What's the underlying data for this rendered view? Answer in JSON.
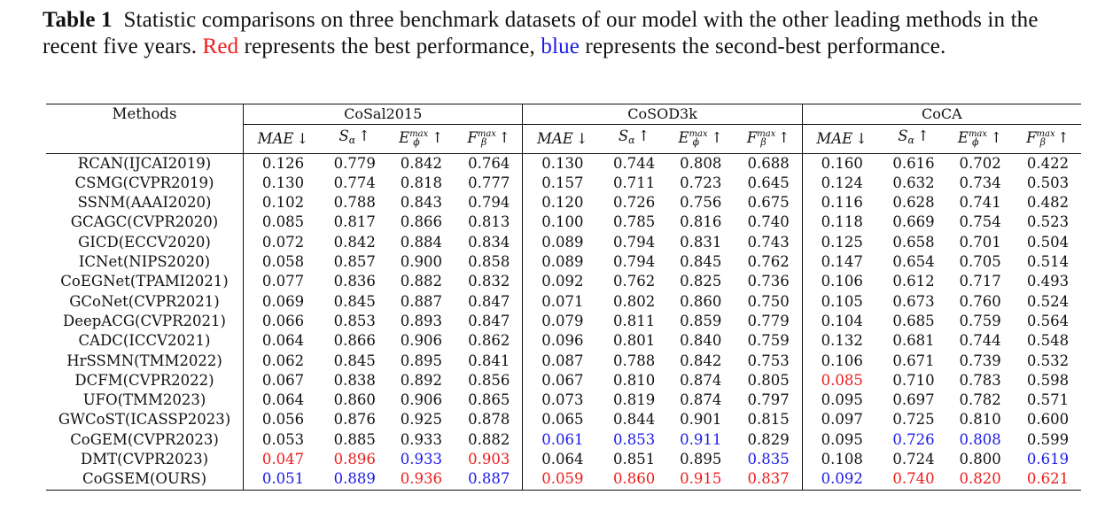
{
  "caption": {
    "label": "Table 1",
    "text_before_red": "Statistic comparisons on three benchmark datasets of our model with the other leading methods in the recent five years. ",
    "red_word": "Red",
    "text_between": " represents the best performance, ",
    "blue_word": "blue",
    "text_after_blue": " represents the second-best performance."
  },
  "colors": {
    "best": "#ee1b1b",
    "second": "#1a1ae6",
    "text": "#111111"
  },
  "table": {
    "methods_header": "Methods",
    "datasets": [
      "CoSal2015",
      "CoSOD3k",
      "CoCA"
    ],
    "metrics": [
      {
        "base": "MAE",
        "sub": "",
        "sup": "",
        "arrow": "↓"
      },
      {
        "base": "S",
        "sub": "α",
        "sup": "",
        "arrow": "↑"
      },
      {
        "base": "E",
        "sub": "ϕ",
        "sup": "max",
        "arrow": "↑"
      },
      {
        "base": "F",
        "sub": "β",
        "sup": "max",
        "arrow": "↑"
      }
    ],
    "rows": [
      {
        "method": "RCAN(IJCAI2019)",
        "values": [
          "0.126",
          "0.779",
          "0.842",
          "0.764",
          "0.130",
          "0.744",
          "0.808",
          "0.688",
          "0.160",
          "0.616",
          "0.702",
          "0.422"
        ],
        "marks": [
          "",
          "",
          "",
          "",
          "",
          "",
          "",
          "",
          "",
          "",
          "",
          ""
        ]
      },
      {
        "method": "CSMG(CVPR2019)",
        "values": [
          "0.130",
          "0.774",
          "0.818",
          "0.777",
          "0.157",
          "0.711",
          "0.723",
          "0.645",
          "0.124",
          "0.632",
          "0.734",
          "0.503"
        ],
        "marks": [
          "",
          "",
          "",
          "",
          "",
          "",
          "",
          "",
          "",
          "",
          "",
          ""
        ]
      },
      {
        "method": "SSNM(AAAI2020)",
        "values": [
          "0.102",
          "0.788",
          "0.843",
          "0.794",
          "0.120",
          "0.726",
          "0.756",
          "0.675",
          "0.116",
          "0.628",
          "0.741",
          "0.482"
        ],
        "marks": [
          "",
          "",
          "",
          "",
          "",
          "",
          "",
          "",
          "",
          "",
          "",
          ""
        ]
      },
      {
        "method": "GCAGC(CVPR2020)",
        "values": [
          "0.085",
          "0.817",
          "0.866",
          "0.813",
          "0.100",
          "0.785",
          "0.816",
          "0.740",
          "0.118",
          "0.669",
          "0.754",
          "0.523"
        ],
        "marks": [
          "",
          "",
          "",
          "",
          "",
          "",
          "",
          "",
          "",
          "",
          "",
          ""
        ]
      },
      {
        "method": "GICD(ECCV2020)",
        "values": [
          "0.072",
          "0.842",
          "0.884",
          "0.834",
          "0.089",
          "0.794",
          "0.831",
          "0.743",
          "0.125",
          "0.658",
          "0.701",
          "0.504"
        ],
        "marks": [
          "",
          "",
          "",
          "",
          "",
          "",
          "",
          "",
          "",
          "",
          "",
          ""
        ]
      },
      {
        "method": "ICNet(NIPS2020)",
        "values": [
          "0.058",
          "0.857",
          "0.900",
          "0.858",
          "0.089",
          "0.794",
          "0.845",
          "0.762",
          "0.147",
          "0.654",
          "0.705",
          "0.514"
        ],
        "marks": [
          "",
          "",
          "",
          "",
          "",
          "",
          "",
          "",
          "",
          "",
          "",
          ""
        ]
      },
      {
        "method": "CoEGNet(TPAMI2021)",
        "values": [
          "0.077",
          "0.836",
          "0.882",
          "0.832",
          "0.092",
          "0.762",
          "0.825",
          "0.736",
          "0.106",
          "0.612",
          "0.717",
          "0.493"
        ],
        "marks": [
          "",
          "",
          "",
          "",
          "",
          "",
          "",
          "",
          "",
          "",
          "",
          ""
        ]
      },
      {
        "method": "GCoNet(CVPR2021)",
        "values": [
          "0.069",
          "0.845",
          "0.887",
          "0.847",
          "0.071",
          "0.802",
          "0.860",
          "0.750",
          "0.105",
          "0.673",
          "0.760",
          "0.524"
        ],
        "marks": [
          "",
          "",
          "",
          "",
          "",
          "",
          "",
          "",
          "",
          "",
          "",
          ""
        ]
      },
      {
        "method": "DeepACG(CVPR2021)",
        "values": [
          "0.066",
          "0.853",
          "0.893",
          "0.847",
          "0.079",
          "0.811",
          "0.859",
          "0.779",
          "0.104",
          "0.685",
          "0.759",
          "0.564"
        ],
        "marks": [
          "",
          "",
          "",
          "",
          "",
          "",
          "",
          "",
          "",
          "",
          "",
          ""
        ]
      },
      {
        "method": "CADC(ICCV2021)",
        "values": [
          "0.064",
          "0.866",
          "0.906",
          "0.862",
          "0.096",
          "0.801",
          "0.840",
          "0.759",
          "0.132",
          "0.681",
          "0.744",
          "0.548"
        ],
        "marks": [
          "",
          "",
          "",
          "",
          "",
          "",
          "",
          "",
          "",
          "",
          "",
          ""
        ]
      },
      {
        "method": "HrSSMN(TMM2022)",
        "values": [
          "0.062",
          "0.845",
          "0.895",
          "0.841",
          "0.087",
          "0.788",
          "0.842",
          "0.753",
          "0.106",
          "0.671",
          "0.739",
          "0.532"
        ],
        "marks": [
          "",
          "",
          "",
          "",
          "",
          "",
          "",
          "",
          "",
          "",
          "",
          ""
        ]
      },
      {
        "method": "DCFM(CVPR2022)",
        "values": [
          "0.067",
          "0.838",
          "0.892",
          "0.856",
          "0.067",
          "0.810",
          "0.874",
          "0.805",
          "0.085",
          "0.710",
          "0.783",
          "0.598"
        ],
        "marks": [
          "",
          "",
          "",
          "",
          "",
          "",
          "",
          "",
          "red",
          "",
          "",
          ""
        ]
      },
      {
        "method": "UFO(TMM2023)",
        "values": [
          "0.064",
          "0.860",
          "0.906",
          "0.865",
          "0.073",
          "0.819",
          "0.874",
          "0.797",
          "0.095",
          "0.697",
          "0.782",
          "0.571"
        ],
        "marks": [
          "",
          "",
          "",
          "",
          "",
          "",
          "",
          "",
          "",
          "",
          "",
          ""
        ]
      },
      {
        "method": "GWCoST(ICASSP2023)",
        "values": [
          "0.056",
          "0.876",
          "0.925",
          "0.878",
          "0.065",
          "0.844",
          "0.901",
          "0.815",
          "0.097",
          "0.725",
          "0.810",
          "0.600"
        ],
        "marks": [
          "",
          "",
          "",
          "",
          "",
          "",
          "",
          "",
          "",
          "",
          "",
          ""
        ]
      },
      {
        "method": "CoGEM(CVPR2023)",
        "values": [
          "0.053",
          "0.885",
          "0.933",
          "0.882",
          "0.061",
          "0.853",
          "0.911",
          "0.829",
          "0.095",
          "0.726",
          "0.808",
          "0.599"
        ],
        "marks": [
          "",
          "",
          "",
          "",
          "blue",
          "blue",
          "blue",
          "",
          "",
          "blue",
          "blue",
          ""
        ]
      },
      {
        "method": "DMT(CVPR2023)",
        "values": [
          "0.047",
          "0.896",
          "0.933",
          "0.903",
          "0.064",
          "0.851",
          "0.895",
          "0.835",
          "0.108",
          "0.724",
          "0.800",
          "0.619"
        ],
        "marks": [
          "red",
          "red",
          "blue",
          "red",
          "",
          "",
          "",
          "blue",
          "",
          "",
          "",
          "blue"
        ]
      },
      {
        "method": "CoGSEM(OURS)",
        "values": [
          "0.051",
          "0.889",
          "0.936",
          "0.887",
          "0.059",
          "0.860",
          "0.915",
          "0.837",
          "0.092",
          "0.740",
          "0.820",
          "0.621"
        ],
        "marks": [
          "blue",
          "blue",
          "red",
          "blue",
          "red",
          "red",
          "red",
          "red",
          "blue",
          "red",
          "red",
          "red"
        ]
      }
    ]
  }
}
